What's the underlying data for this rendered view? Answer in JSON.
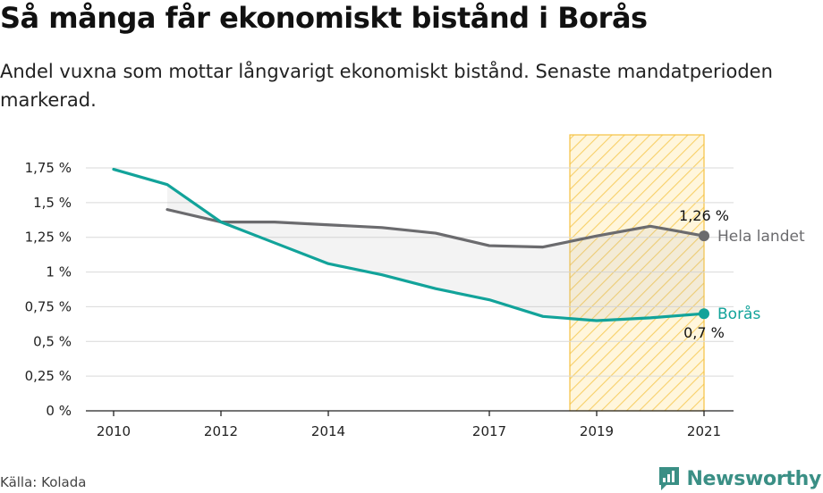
{
  "title": "Så många får ekonomiskt bistånd i Borås",
  "subtitle": "Andel vuxna som mottar långvarigt ekonomiskt bistånd. Senaste mandatperioden markerad.",
  "source": "Källa: Kolada",
  "brand": {
    "name": "Newsworthy",
    "icon": "newsworthy-logo-icon",
    "color": "#3a8f85"
  },
  "chart_data": {
    "type": "line",
    "title": "Så många får ekonomiskt bistånd i Borås",
    "x_ticks": [
      2010,
      2012,
      2014,
      2017,
      2019,
      2021
    ],
    "xlim": [
      2010,
      2021
    ],
    "ylim": [
      0,
      1.75
    ],
    "y_ticks": [
      {
        "value": 0,
        "label": "0 %"
      },
      {
        "value": 0.25,
        "label": "0,25 %"
      },
      {
        "value": 0.5,
        "label": "0,5 %"
      },
      {
        "value": 0.75,
        "label": "0,75 %"
      },
      {
        "value": 1.0,
        "label": "1 %"
      },
      {
        "value": 1.25,
        "label": "1,25 %"
      },
      {
        "value": 1.5,
        "label": "1,5 %"
      },
      {
        "value": 1.75,
        "label": "1,75 %"
      }
    ],
    "grid": true,
    "highlight": {
      "label": "Senaste mandatperioden",
      "x_start": 2018.5,
      "x_end": 2021,
      "color": "#f5c242"
    },
    "series": [
      {
        "name": "Hela landet",
        "color": "#6b6b6e",
        "x": [
          2011,
          2012,
          2013,
          2014,
          2015,
          2016,
          2017,
          2018,
          2019,
          2020,
          2021
        ],
        "values": [
          1.45,
          1.36,
          1.36,
          1.34,
          1.32,
          1.28,
          1.19,
          1.18,
          1.26,
          1.33,
          1.26
        ],
        "end_label": "1,26 %"
      },
      {
        "name": "Borås",
        "color": "#12a39a",
        "x": [
          2010,
          2011,
          2012,
          2013,
          2014,
          2015,
          2016,
          2017,
          2018,
          2019,
          2020,
          2021
        ],
        "values": [
          1.74,
          1.63,
          1.36,
          1.21,
          1.06,
          0.98,
          0.88,
          0.8,
          0.68,
          0.65,
          0.67,
          0.7
        ],
        "end_label": "0,7 %"
      }
    ]
  }
}
